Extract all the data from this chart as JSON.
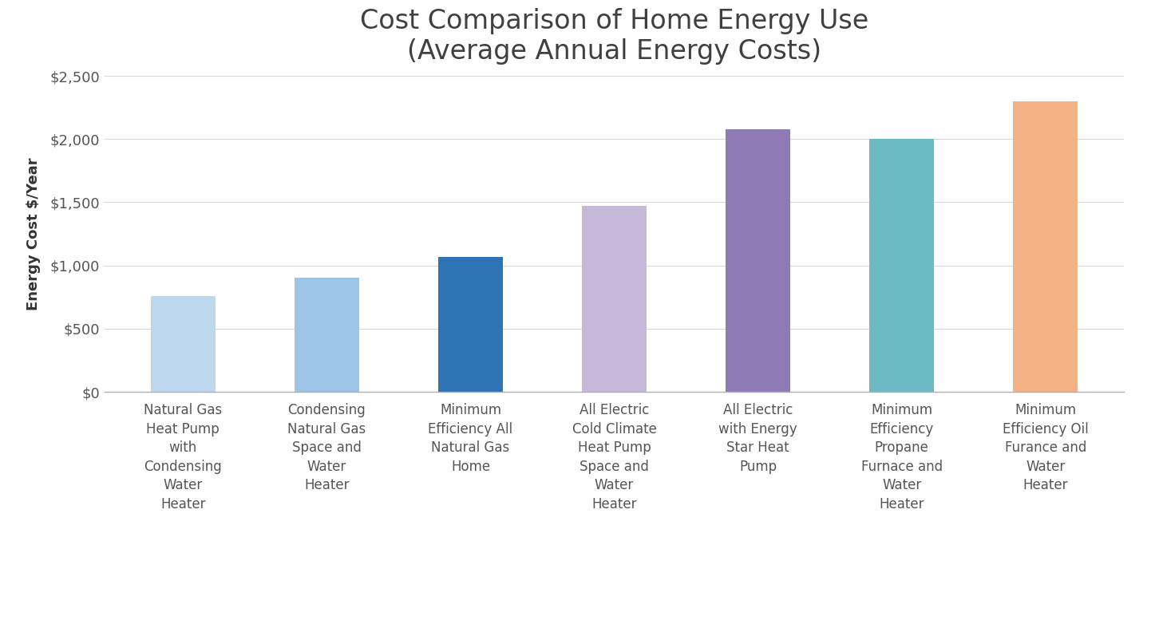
{
  "title": "Cost Comparison of Home Energy Use\n(Average Annual Energy Costs)",
  "ylabel": "Energy Cost $/Year",
  "categories": [
    "Natural Gas\nHeat Pump\nwith\nCondensing\nWater\nHeater",
    "Condensing\nNatural Gas\nSpace and\nWater\nHeater",
    "Minimum\nEfficiency All\nNatural Gas\nHome",
    "All Electric\nCold Climate\nHeat Pump\nSpace and\nWater\nHeater",
    "All Electric\nwith Energy\nStar Heat\nPump",
    "Minimum\nEfficiency\nPropane\nFurnace and\nWater\nHeater",
    "Minimum\nEfficiency Oil\nFurance and\nWater\nHeater"
  ],
  "values": [
    760,
    900,
    1070,
    1470,
    2080,
    2000,
    2300
  ],
  "bar_colors": [
    "#bdd7ee",
    "#9dc3e6",
    "#2e74b5",
    "#c5b8d8",
    "#8f7bb5",
    "#6bbac4",
    "#f4b183"
  ],
  "ylim": [
    0,
    2500
  ],
  "yticks": [
    0,
    500,
    1000,
    1500,
    2000,
    2500
  ],
  "ytick_labels": [
    "$0",
    "$500",
    "$1,000",
    "$1,500",
    "$2,000",
    "$2,500"
  ],
  "background_color": "#ffffff",
  "title_fontsize": 24,
  "ylabel_fontsize": 13,
  "ytick_fontsize": 13,
  "xtick_fontsize": 12,
  "bar_width": 0.45
}
